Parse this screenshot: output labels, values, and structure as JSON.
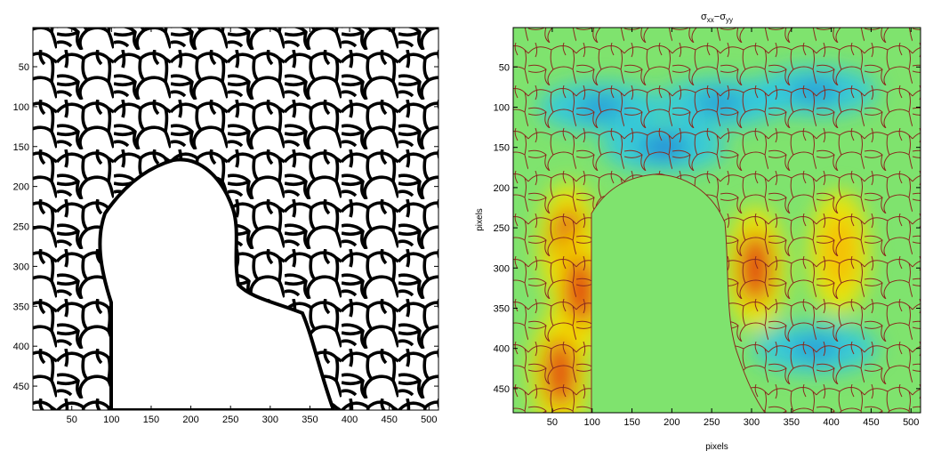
{
  "chart_data": [
    {
      "type": "image",
      "title": "",
      "xlabel": "",
      "ylabel": "",
      "xlim": [
        1,
        512
      ],
      "ylim": [
        1,
        480
      ],
      "y_reversed": true,
      "x_ticks": [
        50,
        100,
        150,
        200,
        250,
        300,
        350,
        400,
        450,
        500
      ],
      "y_ticks": [
        50,
        100,
        150,
        200,
        250,
        300,
        350,
        400,
        450
      ],
      "colormap": "gray",
      "description_color_fg": "#000000",
      "description_color_bg": "#ffffff"
    },
    {
      "type": "heatmap",
      "title_parts": {
        "sigma1": "σ",
        "sub1": "xx",
        "dash": "−",
        "sigma2": "σ",
        "sub2": "yy"
      },
      "xlabel": "pixels",
      "ylabel": "pixels",
      "xlim": [
        1,
        512
      ],
      "ylim": [
        1,
        480
      ],
      "y_reversed": true,
      "x_ticks": [
        50,
        100,
        150,
        200,
        250,
        300,
        350,
        400,
        450,
        500
      ],
      "y_ticks": [
        50,
        100,
        150,
        200,
        250,
        300,
        350,
        400,
        450
      ],
      "colormap": "jet",
      "background_color": "#7fe36e",
      "overlay_color": "#8a2a1e",
      "hotspots": [
        {
          "x": 70,
          "y": 270,
          "level": 0.95
        },
        {
          "x": 85,
          "y": 330,
          "level": 0.9
        },
        {
          "x": 60,
          "y": 430,
          "level": 0.85
        },
        {
          "x": 305,
          "y": 300,
          "level": 0.9
        },
        {
          "x": 410,
          "y": 280,
          "level": 0.55
        }
      ],
      "coldspots": [
        {
          "x": 190,
          "y": 150,
          "level": 0.9
        },
        {
          "x": 110,
          "y": 100,
          "level": 0.6
        },
        {
          "x": 260,
          "y": 95,
          "level": 0.55
        },
        {
          "x": 380,
          "y": 80,
          "level": 0.6
        },
        {
          "x": 380,
          "y": 400,
          "level": 0.6
        }
      ]
    }
  ]
}
